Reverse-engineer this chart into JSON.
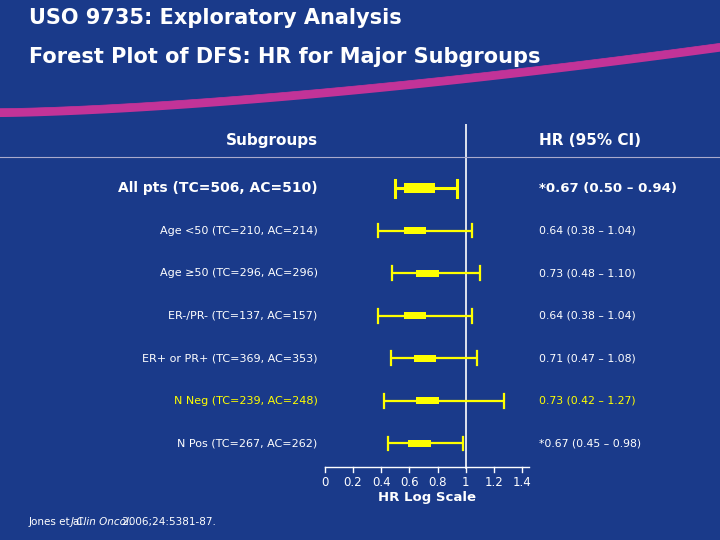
{
  "title_line1": "USO 9735: Exploratory Analysis",
  "title_line2": "Forest Plot of DFS: HR for Major Subgroups",
  "background_color": "#1a3a8a",
  "subgroups_label": "Subgroups",
  "hr_ci_label": "HR (95% CI)",
  "xlabel": "HR Log Scale",
  "xticks": [
    0,
    0.2,
    0.4,
    0.6,
    0.8,
    1.0,
    1.2,
    1.4
  ],
  "xlim": [
    0,
    1.45
  ],
  "reference_line": 1.0,
  "rows": [
    {
      "label": "All pts (TC=506, AC=510)",
      "hr": 0.67,
      "ci_low": 0.5,
      "ci_high": 0.94,
      "hr_text": "*0.67 (0.50 – 0.94)",
      "bold": true,
      "label_color": "#ffffff",
      "text_color": "#ffffff",
      "large": true
    },
    {
      "label": "Age <50 (TC=210, AC=214)",
      "hr": 0.64,
      "ci_low": 0.38,
      "ci_high": 1.04,
      "hr_text": "0.64 (0.38 – 1.04)",
      "bold": false,
      "label_color": "#ffffff",
      "text_color": "#ffffff",
      "large": false
    },
    {
      "label": "Age ≥50 (TC=296, AC=296)",
      "hr": 0.73,
      "ci_low": 0.48,
      "ci_high": 1.1,
      "hr_text": "0.73 (0.48 – 1.10)",
      "bold": false,
      "label_color": "#ffffff",
      "text_color": "#ffffff",
      "large": false
    },
    {
      "label": "ER-/PR- (TC=137, AC=157)",
      "hr": 0.64,
      "ci_low": 0.38,
      "ci_high": 1.04,
      "hr_text": "0.64 (0.38 – 1.04)",
      "bold": false,
      "label_color": "#ffffff",
      "text_color": "#ffffff",
      "large": false
    },
    {
      "label": "ER+ or PR+ (TC=369, AC=353)",
      "hr": 0.71,
      "ci_low": 0.47,
      "ci_high": 1.08,
      "hr_text": "0.71 (0.47 – 1.08)",
      "bold": false,
      "label_color": "#ffffff",
      "text_color": "#ffffff",
      "large": false
    },
    {
      "label": "N Neg (TC=239, AC=248)",
      "hr": 0.73,
      "ci_low": 0.42,
      "ci_high": 1.27,
      "hr_text": "0.73 (0.42 – 1.27)",
      "bold": false,
      "label_color": "#ffff00",
      "text_color": "#ffff00",
      "large": false
    },
    {
      "label": "N Pos (TC=267, AC=262)",
      "hr": 0.67,
      "ci_low": 0.45,
      "ci_high": 0.98,
      "hr_text": "*0.67 (0.45 – 0.98)",
      "bold": false,
      "label_color": "#ffffff",
      "text_color": "#ffffff",
      "large": false
    }
  ],
  "marker_color": "#ffff00",
  "line_color": "#ffff00",
  "title_color": "#ffffff",
  "pink_curve_color": "#cc3399",
  "divider_color": "#aaaacc"
}
